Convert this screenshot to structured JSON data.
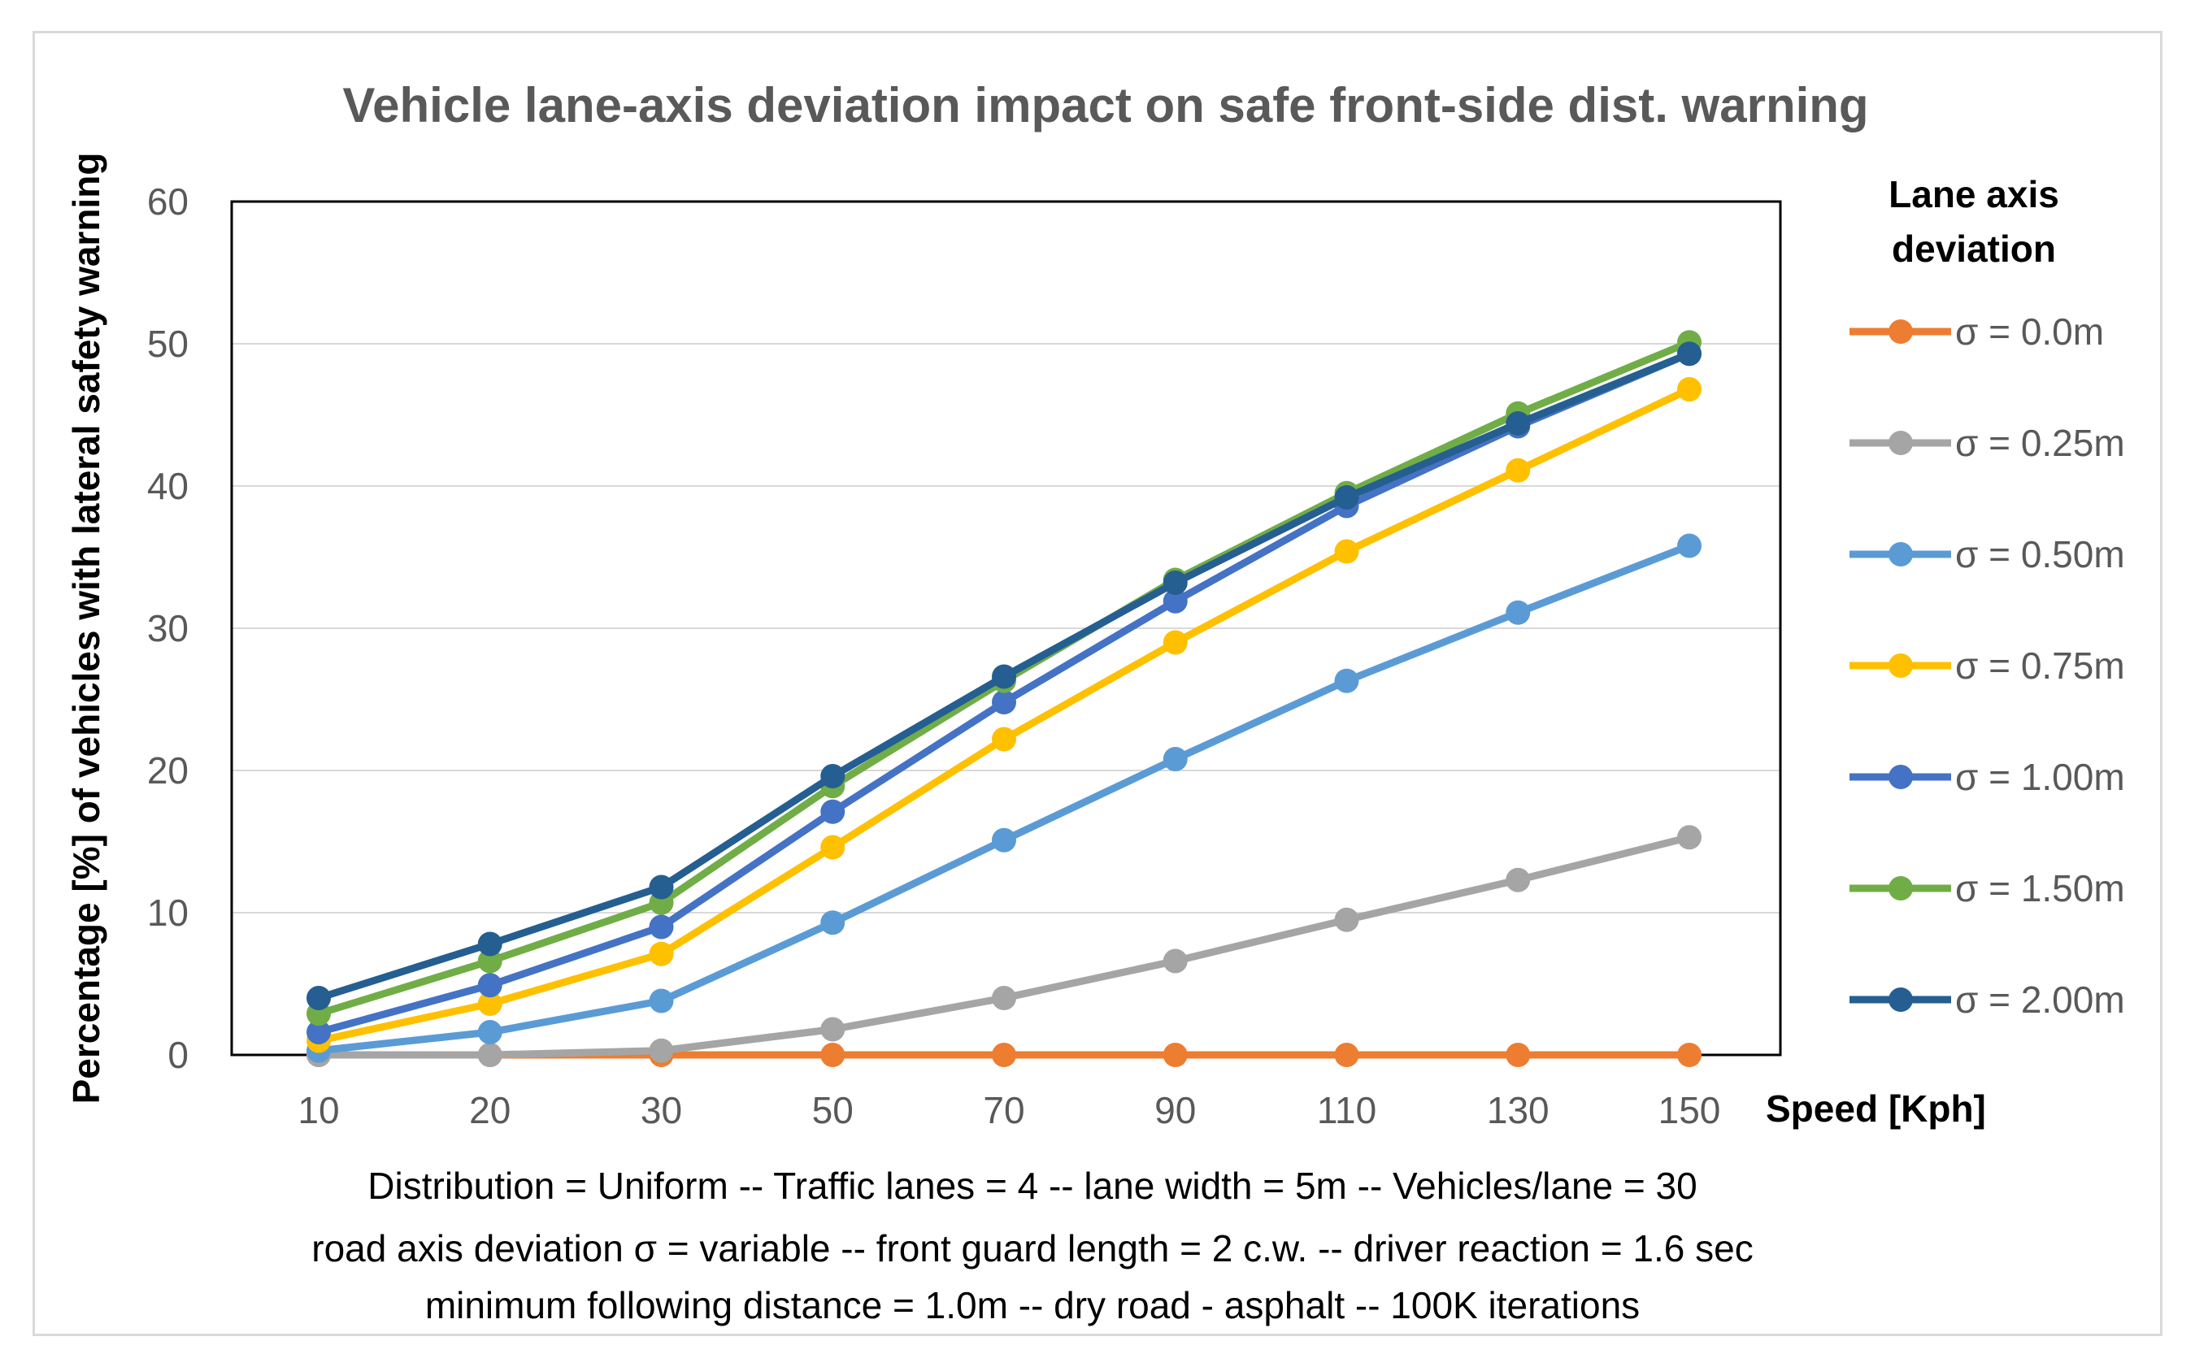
{
  "chart_data": {
    "type": "line",
    "title": "Vehicle lane-axis deviation impact on safe front-side dist. warning",
    "xlabel": "Speed [Kph]",
    "ylabel": "Percentage [%] of vehicles with lateral safety warning",
    "categories": [
      "10",
      "20",
      "30",
      "50",
      "70",
      "90",
      "110",
      "130",
      "150"
    ],
    "ylim": [
      0,
      60
    ],
    "yticks": [
      0,
      10,
      20,
      30,
      40,
      50,
      60
    ],
    "grid": true,
    "legend_title": "Lane axis deviation",
    "legend_position": "right",
    "series": [
      {
        "name": "σ = 0.0m",
        "color": "#ED7D31",
        "values": [
          0,
          0,
          0,
          0,
          0,
          0,
          0,
          0,
          0
        ]
      },
      {
        "name": "σ = 0.25m",
        "color": "#A5A5A5",
        "values": [
          0,
          0,
          0.3,
          1.8,
          4.0,
          6.6,
          9.5,
          12.3,
          15.3
        ]
      },
      {
        "name": "σ = 0.50m",
        "color": "#5B9BD5",
        "values": [
          0.3,
          1.6,
          3.8,
          9.3,
          15.1,
          20.8,
          26.3,
          31.1,
          35.8
        ]
      },
      {
        "name": "σ = 0.75m",
        "color": "#FFC000",
        "values": [
          1.0,
          3.6,
          7.1,
          14.6,
          22.2,
          29.0,
          35.4,
          41.1,
          46.8
        ]
      },
      {
        "name": "σ = 1.00m",
        "color": "#4472C4",
        "values": [
          1.6,
          4.9,
          9.0,
          17.1,
          24.8,
          31.9,
          38.6,
          44.2,
          49.3
        ]
      },
      {
        "name": "σ = 1.50m",
        "color": "#70AD47",
        "values": [
          2.9,
          6.6,
          10.7,
          18.9,
          26.3,
          33.4,
          39.5,
          45.1,
          50.1
        ]
      },
      {
        "name": "σ = 2.00m",
        "color": "#255E91",
        "values": [
          4.0,
          7.8,
          11.8,
          19.6,
          26.6,
          33.2,
          39.2,
          44.4,
          49.3
        ]
      }
    ],
    "notes": [
      "Distribution = Uniform -- Traffic lanes = 4 -- lane width = 5m -- Vehicles/lane = 30",
      "road axis deviation σ = variable -- front guard length = 2 c.w. -- driver reaction = 1.6 sec",
      "minimum following distance = 1.0m -- dry road - asphalt -- 100K iterations"
    ]
  }
}
